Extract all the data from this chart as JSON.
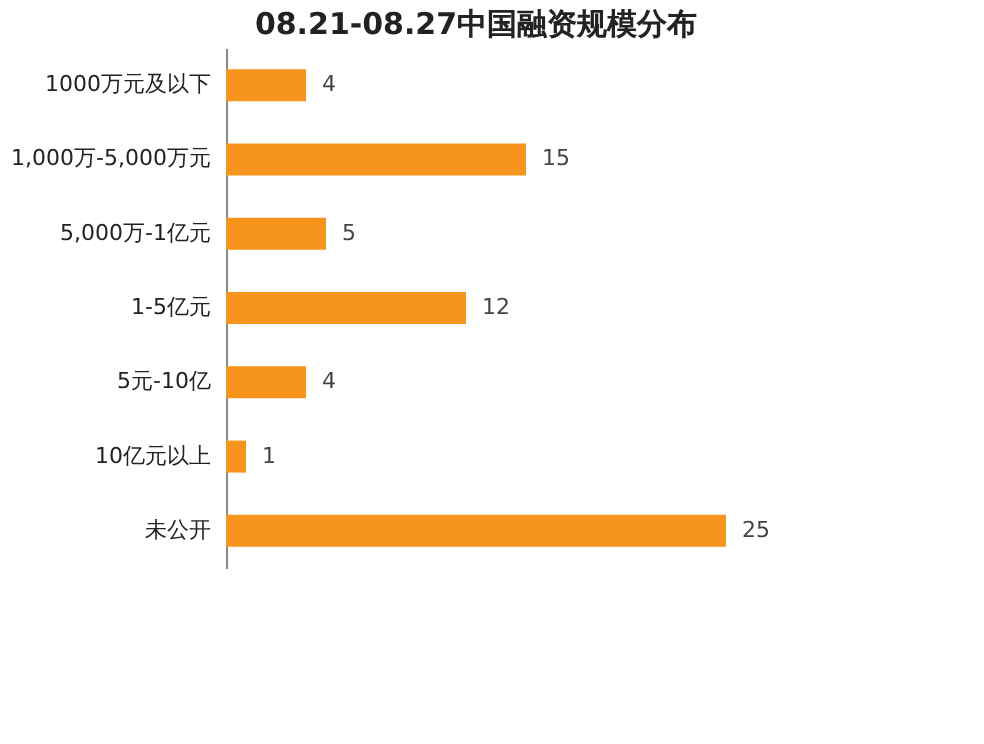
{
  "chart_data": {
    "type": "bar",
    "orientation": "horizontal",
    "title": "08.21-08.27中国融资规模分布",
    "categories": [
      "1000万元及以下",
      "1,000万-5,000万元",
      "5,000万-1亿元",
      "1-5亿元",
      "5元-10亿",
      "10亿元以上",
      "未公开"
    ],
    "values": [
      4,
      15,
      5,
      12,
      4,
      1,
      25
    ],
    "color": "#f7941d",
    "data_labels": true,
    "grid": false
  }
}
